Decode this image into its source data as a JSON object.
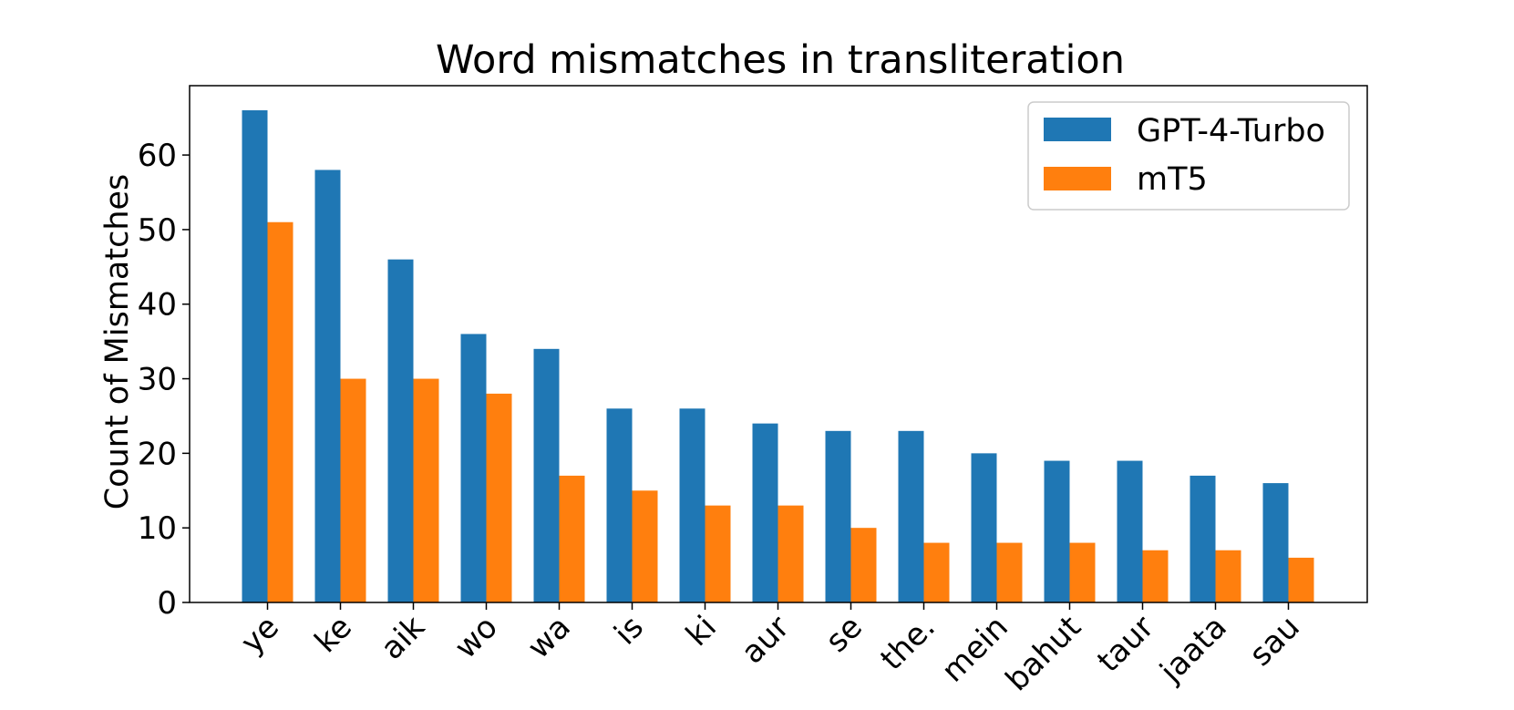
{
  "chart_data": {
    "type": "bar",
    "title": "Word mismatches in transliteration",
    "xlabel": "",
    "ylabel": "Count of Mismatches",
    "categories": [
      "ye",
      "ke",
      "aik",
      "wo",
      "wa",
      "is",
      "ki",
      "aur",
      "se",
      "the.",
      "mein",
      "bahut",
      "taur",
      "jaata",
      "sau"
    ],
    "series": [
      {
        "name": "GPT-4-Turbo",
        "color": "#1f77b4",
        "values": [
          66,
          58,
          46,
          36,
          34,
          26,
          26,
          24,
          23,
          23,
          20,
          19,
          19,
          17,
          16
        ]
      },
      {
        "name": "mT5",
        "color": "#ff7f0e",
        "values": [
          51,
          30,
          30,
          28,
          17,
          15,
          13,
          13,
          10,
          8,
          8,
          8,
          7,
          7,
          6
        ]
      }
    ],
    "ylim": [
      0,
      69.3
    ],
    "yticks": [
      0,
      10,
      20,
      30,
      40,
      50,
      60
    ],
    "grid": false,
    "legend_position": "top-right"
  }
}
